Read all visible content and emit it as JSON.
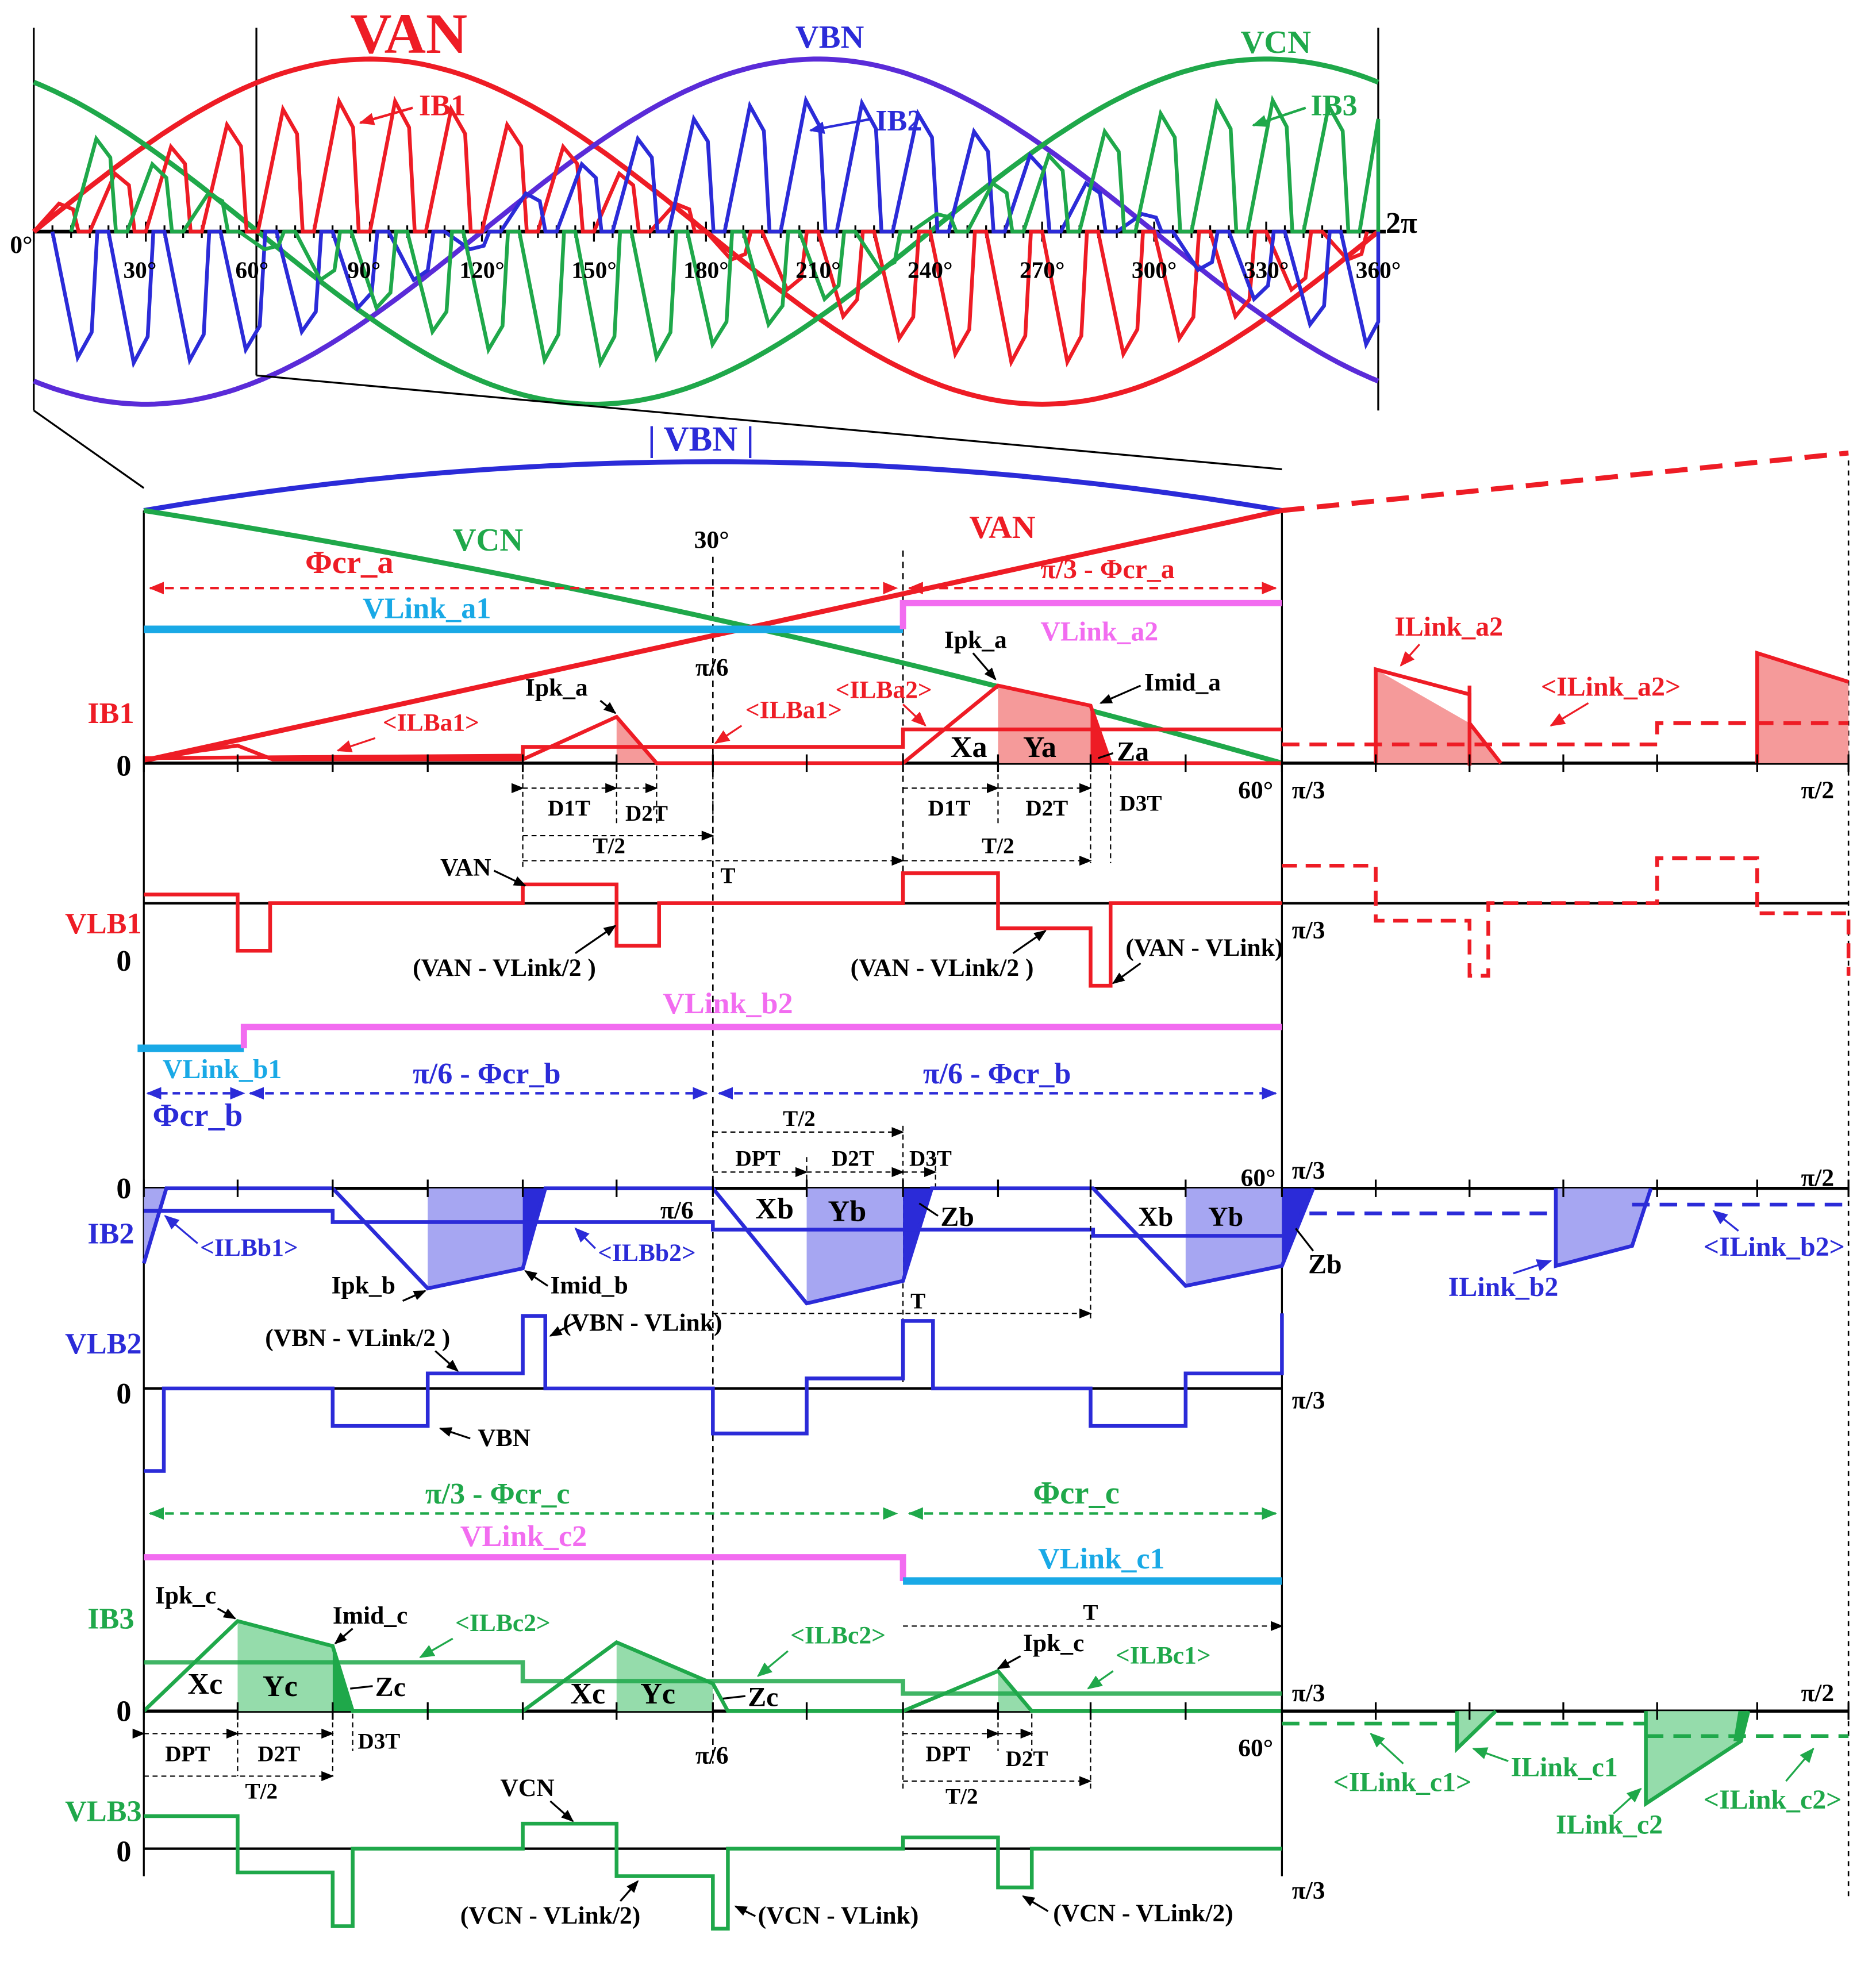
{
  "colors": {
    "red": "#ee1c25",
    "blue": "#2b2bd8",
    "green": "#1fa84a",
    "violet": "#5a2bd8",
    "cyan": "#19a9e6",
    "pink": "#f26cf0",
    "black": "#000000",
    "red_fill": "#f59a9a",
    "blue_fill": "#a6a6f2",
    "green_fill": "#95dcab"
  },
  "top": {
    "VAN": "VAN",
    "VBN": "VBN",
    "VCN": "VCN",
    "IB1": "IB1",
    "IB2": "IB2",
    "IB3": "IB3",
    "zero_deg": "0°",
    "two_pi": "2π",
    "ticks": [
      "30°",
      "60°",
      "90°",
      "120°",
      "150°",
      "180°",
      "210°",
      "240°",
      "270°",
      "300°",
      "330°",
      "360°"
    ]
  },
  "phase_a": {
    "abs_vbn": "| VBN |",
    "vcn": "VCN",
    "van": "VAN",
    "deg30": "30°",
    "phi": "Φcr_a",
    "pi3_phi": "π/3 - Φcr_a",
    "vlink_a1": "VLink_a1",
    "vlink_a2": "VLink_a2",
    "ilink_a2": "ILink_a2",
    "avg_ilink_a2": "<ILink_a2>",
    "ipk_a": "Ipk_a",
    "imid_a": "Imid_a",
    "ilba1": "<ILBa1>",
    "ilba2": "<ILBa2>",
    "pi6": "π/6",
    "ib1": "IB1",
    "zero": "0",
    "xa": "Xa",
    "ya": "Ya",
    "za": "Za",
    "d1t": "D1T",
    "d2t": "D2T",
    "d3t": "D3T",
    "t2": "T/2",
    "t": "T",
    "deg60": "60°",
    "pi3": "π/3",
    "pi2": "π/2",
    "vlb1": "VLB1",
    "van_arrow": "VAN",
    "van_half": "(VAN - VLink/2 )",
    "van_full": "(VAN - VLink)"
  },
  "phase_b": {
    "vlink_b2": "VLink_b2",
    "vlink_b1": "VLink_b1",
    "phi": "Φcr_b",
    "pi6_phi": "π/6 - Φcr_b",
    "t2": "T/2",
    "dpt": "DPT",
    "d2t": "D2T",
    "d3t": "D3T",
    "zero": "0",
    "deg60": "60°",
    "pi3": "π/3",
    "pi2": "π/2",
    "pi6": "π/6",
    "ib2": "IB2",
    "xb": "Xb",
    "yb": "Yb",
    "zb": "Zb",
    "ilbb1": "<ILBb1>",
    "ilbb2": "<ILBb2>",
    "ipk_b": "Ipk_b",
    "imid_b": "Imid_b",
    "ilink_b2": "ILink_b2",
    "avg_ilink_b2": "<ILink_b2>",
    "t": "T",
    "vlb2": "VLB2",
    "vbn_half": "(VBN - VLink/2 )",
    "vbn_full": "(VBN - VLink)",
    "vbn": "VBN"
  },
  "phase_c": {
    "pi3_phi": "π/3 - Φcr_c",
    "phi": "Φcr_c",
    "vlink_c2": "VLink_c2",
    "vlink_c1": "VLink_c1",
    "ipk_c": "Ipk_c",
    "imid_c": "Imid_c",
    "ilbc2": "<ILBc2>",
    "ilbc1": "<ILBc1>",
    "ib3": "IB3",
    "zero": "0",
    "xc": "Xc",
    "yc": "Yc",
    "zc": "Zc",
    "t": "T",
    "dpt": "DPT",
    "d2t": "D2T",
    "d3t": "D3T",
    "t2": "T/2",
    "pi6": "π/6",
    "deg60": "60°",
    "pi3": "π/3",
    "pi2": "π/2",
    "avg_ilink_c1": "<ILink_c1>",
    "ilink_c1": "ILink_c1",
    "ilink_c2": "ILink_c2",
    "avg_ilink_c2": "<ILink_c2>",
    "vlb3": "VLB3",
    "vcn": "VCN",
    "vcn_half": "(VCN - VLink/2)",
    "vcn_full": "(VCN - VLink)",
    "vcn_half2": "(VCN - VLink/2)"
  }
}
